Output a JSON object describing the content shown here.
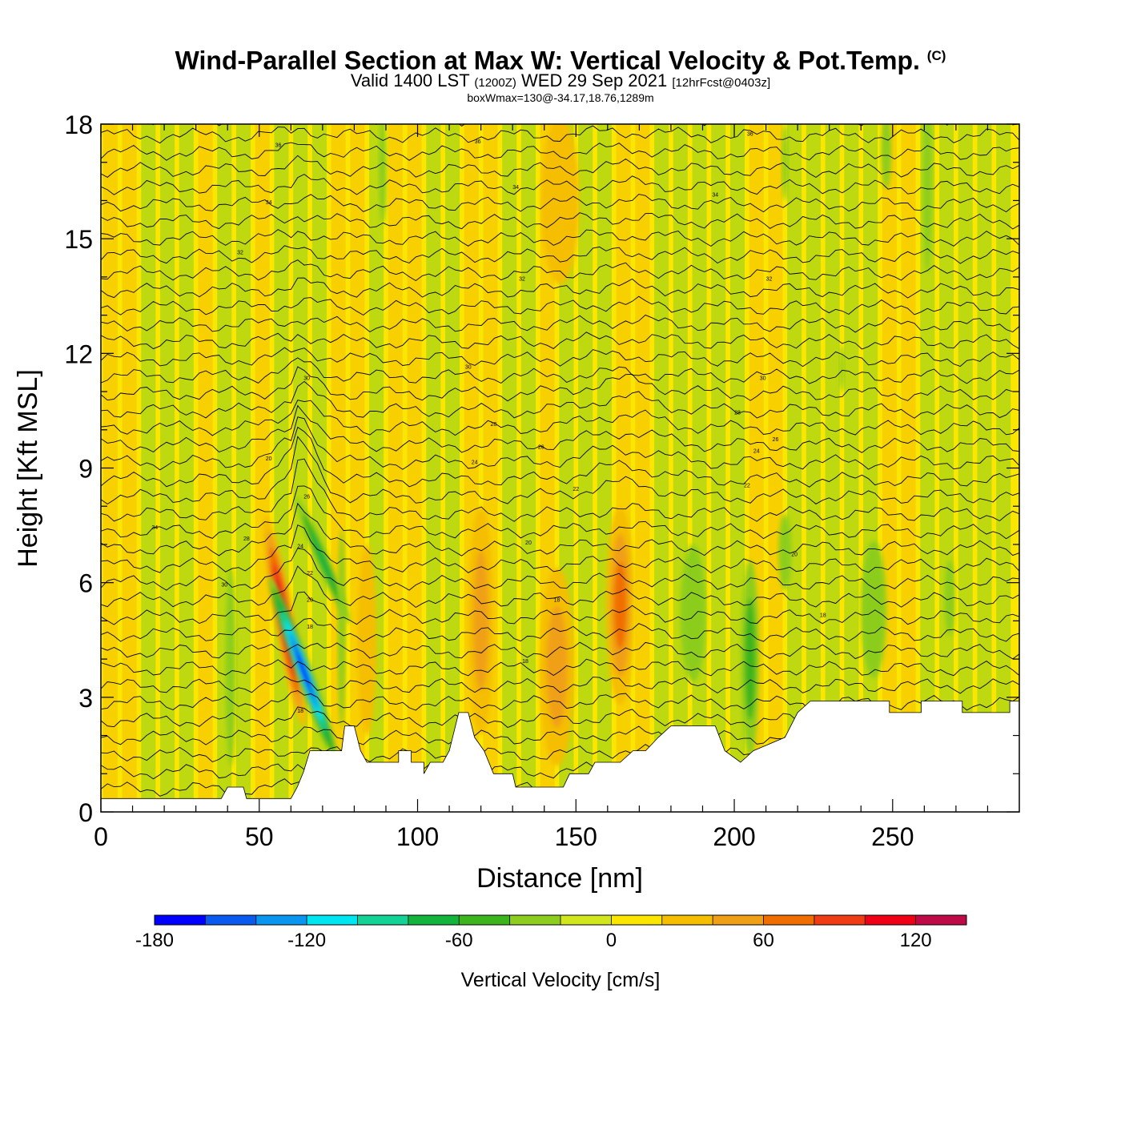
{
  "header": {
    "title": "Wind-Parallel Section at Max W: Vertical Velocity & Pot.Temp.",
    "copyright_mark": "(C)",
    "valid_prefix": "Valid 1400 LST",
    "valid_utc": "(1200Z)",
    "valid_date": "WED 29 Sep 2021",
    "forecast_info": "[12hrFcst@0403z]",
    "box_info": "boxWmax=130@-34.17,18.76,1289m"
  },
  "chart_data": {
    "type": "heatmap",
    "xlabel": "Distance [nm]",
    "ylabel": "Height [Kft MSL]",
    "xlim": [
      0,
      290
    ],
    "ylim": [
      0,
      18
    ],
    "x_ticks": [
      0,
      50,
      100,
      150,
      200,
      250
    ],
    "y_ticks": [
      0,
      3,
      6,
      9,
      12,
      15,
      18
    ],
    "colorbar": {
      "title": "Vertical Velocity [cm/s]",
      "bounds": [
        -180,
        -160,
        -140,
        -120,
        -100,
        -80,
        -60,
        -40,
        -20,
        0,
        20,
        40,
        60,
        80,
        100,
        120,
        140
      ],
      "colors": [
        "#0000ff",
        "#0a5af0",
        "#0896f0",
        "#00e6f0",
        "#12d296",
        "#12b43c",
        "#3cb41e",
        "#8ccd1e",
        "#d2e61e",
        "#fae600",
        "#f5be00",
        "#f0a014",
        "#f06e00",
        "#f03c14",
        "#f00014",
        "#be0a46"
      ],
      "tick_labels": [
        -180,
        -120,
        -60,
        0,
        60,
        120
      ]
    },
    "terrain_kft": [
      [
        0,
        0.35
      ],
      [
        38,
        0.35
      ],
      [
        40,
        0.65
      ],
      [
        45,
        0.65
      ],
      [
        46,
        0.35
      ],
      [
        60,
        0.35
      ],
      [
        62,
        0.65
      ],
      [
        64,
        1.05
      ],
      [
        66,
        1.6
      ],
      [
        76,
        1.6
      ],
      [
        77,
        2.25
      ],
      [
        80,
        2.25
      ],
      [
        82,
        1.6
      ],
      [
        84,
        1.3
      ],
      [
        94,
        1.3
      ],
      [
        94,
        1.6
      ],
      [
        98,
        1.6
      ],
      [
        98,
        1.3
      ],
      [
        102,
        1.3
      ],
      [
        102,
        1.0
      ],
      [
        104,
        1.3
      ],
      [
        108,
        1.3
      ],
      [
        110,
        1.6
      ],
      [
        113,
        2.6
      ],
      [
        116,
        2.6
      ],
      [
        118,
        1.95
      ],
      [
        121,
        1.6
      ],
      [
        124,
        1.0
      ],
      [
        130,
        1.0
      ],
      [
        131,
        0.65
      ],
      [
        146,
        0.65
      ],
      [
        148,
        1.0
      ],
      [
        154,
        1.0
      ],
      [
        156,
        1.3
      ],
      [
        164,
        1.3
      ],
      [
        168,
        1.6
      ],
      [
        172,
        1.6
      ],
      [
        176,
        1.95
      ],
      [
        180,
        2.25
      ],
      [
        194,
        2.25
      ],
      [
        197,
        1.6
      ],
      [
        202,
        1.3
      ],
      [
        206,
        1.6
      ],
      [
        216,
        1.95
      ],
      [
        220,
        2.6
      ],
      [
        224,
        2.9
      ],
      [
        249,
        2.9
      ],
      [
        249,
        2.6
      ],
      [
        259,
        2.6
      ],
      [
        259,
        2.9
      ],
      [
        272,
        2.9
      ],
      [
        272,
        2.6
      ],
      [
        287,
        2.6
      ],
      [
        287,
        2.9
      ],
      [
        290,
        2.9
      ]
    ],
    "vertical_velocity_features": [
      {
        "x": 58,
        "y": 5.0,
        "rx": 3.2,
        "ry": 2.8,
        "tilt": -0.18,
        "value": 130
      },
      {
        "x": 64,
        "y": 3.7,
        "rx": 2.6,
        "ry": 2.6,
        "tilt": -0.35,
        "value": -180
      },
      {
        "x": 70,
        "y": 6.6,
        "rx": 2.0,
        "ry": 1.8,
        "tilt": -0.4,
        "value": -60
      },
      {
        "x": 41,
        "y": 3.8,
        "rx": 1.6,
        "ry": 2.6,
        "tilt": 0,
        "value": -25
      },
      {
        "x": 76,
        "y": 4.8,
        "rx": 1.2,
        "ry": 2.6,
        "tilt": 0,
        "value": -30
      },
      {
        "x": 120,
        "y": 5.0,
        "rx": 4.0,
        "ry": 3.0,
        "tilt": 0,
        "value": 45
      },
      {
        "x": 144,
        "y": 3.8,
        "rx": 5.5,
        "ry": 2.6,
        "tilt": 0,
        "value": 55
      },
      {
        "x": 164,
        "y": 5.4,
        "rx": 4.5,
        "ry": 2.6,
        "tilt": 0,
        "value": 75
      },
      {
        "x": 84,
        "y": 4.5,
        "rx": 3.0,
        "ry": 2.5,
        "tilt": 0,
        "value": 30
      },
      {
        "x": 187,
        "y": 5.2,
        "rx": 4.0,
        "ry": 1.8,
        "tilt": 0,
        "value": -35
      },
      {
        "x": 205,
        "y": 4.0,
        "rx": 2.8,
        "ry": 2.6,
        "tilt": 0,
        "value": -50
      },
      {
        "x": 216,
        "y": 6.8,
        "rx": 2.0,
        "ry": 1.0,
        "tilt": 0,
        "value": -30
      },
      {
        "x": 244,
        "y": 5.3,
        "rx": 4.0,
        "ry": 1.8,
        "tilt": 0,
        "value": -35
      },
      {
        "x": 268,
        "y": 5.6,
        "rx": 1.6,
        "ry": 1.0,
        "tilt": 0,
        "value": -25
      },
      {
        "x": 89,
        "y": 16.8,
        "rx": 1.2,
        "ry": 1.4,
        "tilt": 0,
        "value": -25
      },
      {
        "x": 261,
        "y": 16.5,
        "rx": 1.4,
        "ry": 2.4,
        "tilt": 0,
        "value": -30
      },
      {
        "x": 248,
        "y": 17.3,
        "rx": 1.6,
        "ry": 1.0,
        "tilt": 0,
        "value": -25
      },
      {
        "x": 216,
        "y": 17.0,
        "rx": 1.0,
        "ry": 1.0,
        "tilt": 0,
        "value": -25
      },
      {
        "x": 234,
        "y": 11.6,
        "rx": 0.8,
        "ry": 0.6,
        "tilt": 0,
        "value": -25
      },
      {
        "x": 20,
        "y": 13.5,
        "rx": 8.0,
        "ry": 4.0,
        "tilt": 0,
        "value": 12
      },
      {
        "x": 60,
        "y": 15.0,
        "rx": 6.0,
        "ry": 3.0,
        "tilt": 0,
        "value": 12
      },
      {
        "x": 145,
        "y": 16.0,
        "rx": 6.0,
        "ry": 2.2,
        "tilt": 0,
        "value": 25
      },
      {
        "x": 120,
        "y": 12.5,
        "rx": 8.0,
        "ry": 3.0,
        "tilt": 0,
        "value": 10
      },
      {
        "x": 200,
        "y": 14.0,
        "rx": 10.0,
        "ry": 3.0,
        "tilt": 0,
        "value": 10
      },
      {
        "x": 265,
        "y": 12.0,
        "rx": 8.0,
        "ry": 4.0,
        "tilt": 0,
        "value": 10
      }
    ],
    "contour_labels": [
      {
        "text": "36",
        "x": 56,
        "y": 17.4
      },
      {
        "text": "36",
        "x": 119,
        "y": 17.5
      },
      {
        "text": "36",
        "x": 205,
        "y": 17.7
      },
      {
        "text": "34",
        "x": 53,
        "y": 15.9
      },
      {
        "text": "34",
        "x": 131,
        "y": 16.3
      },
      {
        "text": "34",
        "x": 194,
        "y": 16.1
      },
      {
        "text": "32",
        "x": 44,
        "y": 14.6
      },
      {
        "text": "32",
        "x": 133,
        "y": 13.9
      },
      {
        "text": "32",
        "x": 211,
        "y": 13.9
      },
      {
        "text": "30",
        "x": 65,
        "y": 11.3
      },
      {
        "text": "30",
        "x": 116,
        "y": 11.6
      },
      {
        "text": "30",
        "x": 209,
        "y": 11.3
      },
      {
        "text": "28",
        "x": 124,
        "y": 10.1
      },
      {
        "text": "28",
        "x": 201,
        "y": 10.4
      },
      {
        "text": "26",
        "x": 139,
        "y": 9.5
      },
      {
        "text": "26",
        "x": 213,
        "y": 9.7
      },
      {
        "text": "24",
        "x": 118,
        "y": 9.1
      },
      {
        "text": "24",
        "x": 207,
        "y": 9.4
      },
      {
        "text": "22",
        "x": 150,
        "y": 8.4
      },
      {
        "text": "22",
        "x": 204,
        "y": 8.5
      },
      {
        "text": "20",
        "x": 53,
        "y": 9.2
      },
      {
        "text": "20",
        "x": 135,
        "y": 7.0
      },
      {
        "text": "20",
        "x": 219,
        "y": 6.7
      },
      {
        "text": "18",
        "x": 144,
        "y": 5.5
      },
      {
        "text": "18",
        "x": 134,
        "y": 3.9
      },
      {
        "text": "18",
        "x": 228,
        "y": 5.1
      },
      {
        "text": "34",
        "x": 17,
        "y": 7.4
      },
      {
        "text": "28",
        "x": 46,
        "y": 7.1
      },
      {
        "text": "30",
        "x": 39,
        "y": 5.9
      },
      {
        "text": "26",
        "x": 65,
        "y": 8.2
      },
      {
        "text": "24",
        "x": 63,
        "y": 6.9
      },
      {
        "text": "22",
        "x": 66,
        "y": 6.2
      },
      {
        "text": "20",
        "x": 66,
        "y": 5.5
      },
      {
        "text": "18",
        "x": 66,
        "y": 4.8
      },
      {
        "text": "18",
        "x": 63,
        "y": 2.6
      }
    ]
  }
}
